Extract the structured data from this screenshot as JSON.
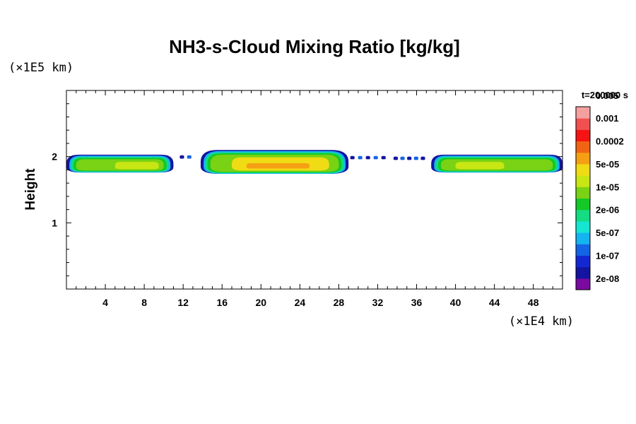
{
  "chart_data": {
    "type": "heatmap",
    "title": "NH3-s-Cloud Mixing Ratio [kg/kg]",
    "xlabel": "",
    "ylabel": "Height",
    "x_scale_label": "(×1E4 km)",
    "y_scale_label": "(×1E5 km)",
    "xlim": [
      0,
      51
    ],
    "ylim": [
      0,
      3
    ],
    "x_ticks": [
      4,
      8,
      12,
      16,
      20,
      24,
      28,
      32,
      36,
      40,
      44,
      48
    ],
    "y_ticks": [
      1,
      2
    ],
    "time_label": "t=200000 s",
    "colorbar": {
      "colors": [
        "#7a0aa0",
        "#1414a0",
        "#1428d2",
        "#1464e6",
        "#14b4f0",
        "#14e6d2",
        "#14dc82",
        "#14c828",
        "#7ad214",
        "#c8e614",
        "#f0dc14",
        "#f5a014",
        "#f06414",
        "#f51414",
        "#f05050",
        "#f5a0a0"
      ],
      "labels": [
        "2e-08",
        "1e-07",
        "5e-07",
        "2e-06",
        "1e-05",
        "5e-05",
        "0.0002",
        "0.001",
        "0.005"
      ]
    },
    "cloud_layers": [
      {
        "x_start": 0,
        "x_end": 11,
        "y_bottom": 1.76,
        "y_top": 2.03,
        "core_level": "5e-05",
        "core_x": [
          5,
          9.5
        ]
      },
      {
        "x_start": 13.8,
        "x_end": 29,
        "y_bottom": 1.74,
        "y_top": 2.1,
        "core_level": "0.0002",
        "core_x": [
          17,
          27
        ]
      },
      {
        "x_start": 37.5,
        "x_end": 51,
        "y_bottom": 1.76,
        "y_top": 2.03,
        "core_level": "5e-05",
        "core_x": [
          40,
          45
        ]
      }
    ],
    "sparse_patches": [
      {
        "x_start": 11.5,
        "x_end": 13,
        "y": 2.0
      },
      {
        "x_start": 29,
        "x_end": 33,
        "y": 1.99
      },
      {
        "x_start": 33.5,
        "x_end": 37,
        "y": 1.98
      }
    ]
  }
}
